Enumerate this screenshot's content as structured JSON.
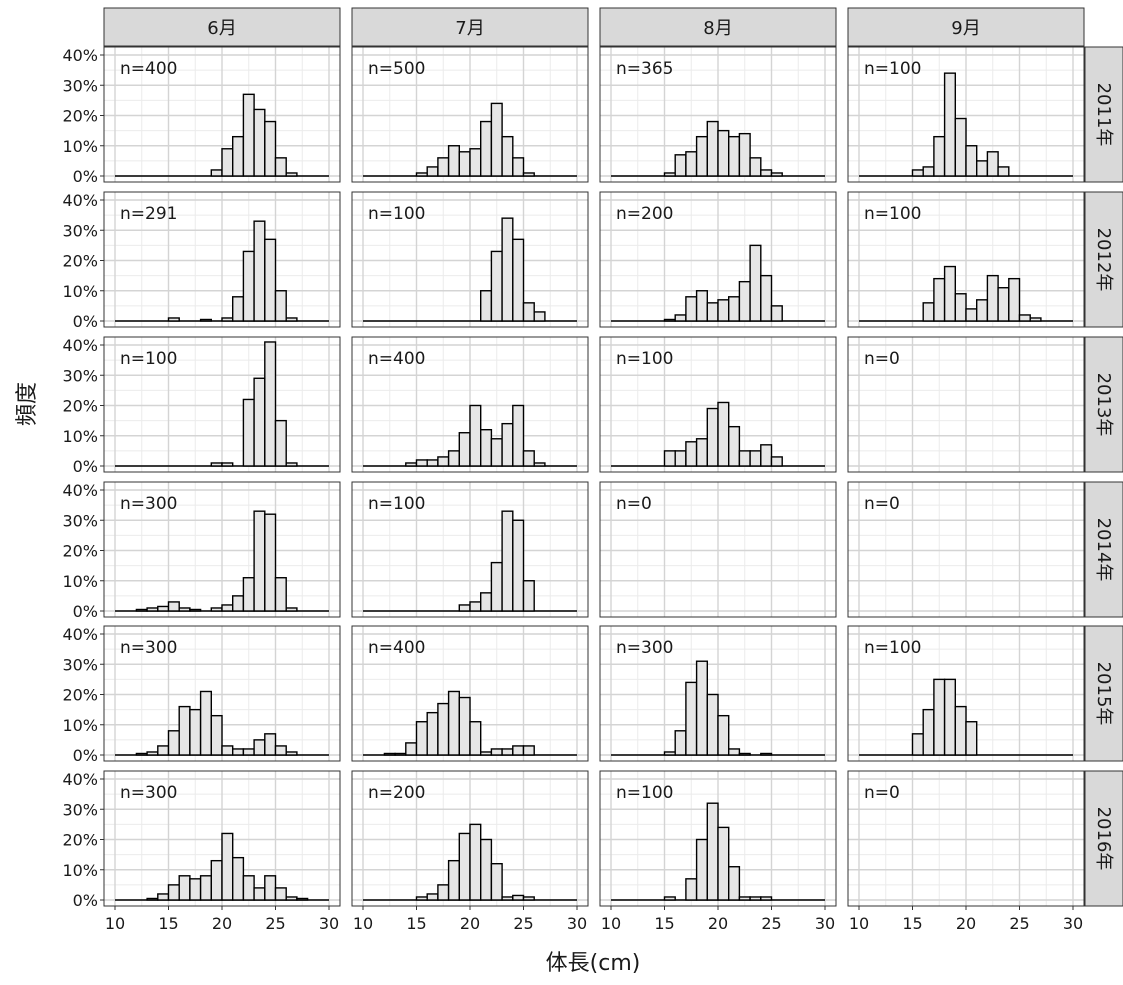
{
  "chart_data": {
    "type": "bar",
    "subtype": "faceted-histogram",
    "xlabel": "体長(cm)",
    "ylabel": "頻度",
    "xlim": [
      10,
      30
    ],
    "ylim": [
      0,
      40
    ],
    "x_ticks": [
      "10",
      "15",
      "20",
      "25",
      "30"
    ],
    "y_ticks": [
      "0%",
      "10%",
      "20%",
      "30%",
      "40%"
    ],
    "grid": true,
    "bin_width_cm": 1,
    "columns": [
      "6月",
      "7月",
      "8月",
      "9月"
    ],
    "rows": [
      "2011年",
      "2012年",
      "2013年",
      "2014年",
      "2015年",
      "2016年"
    ],
    "fill_color": "#e6e6e6",
    "edge_color": "#000000",
    "strip_color": "#d9d9d9",
    "panels": [
      {
        "row": "2011年",
        "col": "6月",
        "n_label": "n=400",
        "bins": [
          [
            19,
            2
          ],
          [
            20,
            9
          ],
          [
            21,
            13
          ],
          [
            22,
            27
          ],
          [
            23,
            22
          ],
          [
            24,
            18
          ],
          [
            25,
            6
          ],
          [
            26,
            1
          ]
        ]
      },
      {
        "row": "2011年",
        "col": "7月",
        "n_label": "n=500",
        "bins": [
          [
            15,
            1
          ],
          [
            16,
            3
          ],
          [
            17,
            6
          ],
          [
            18,
            10
          ],
          [
            19,
            8
          ],
          [
            20,
            9
          ],
          [
            21,
            18
          ],
          [
            22,
            24
          ],
          [
            23,
            13
          ],
          [
            24,
            6
          ],
          [
            25,
            1
          ]
        ]
      },
      {
        "row": "2011年",
        "col": "8月",
        "n_label": "n=365",
        "bins": [
          [
            15,
            1
          ],
          [
            16,
            7
          ],
          [
            17,
            8
          ],
          [
            18,
            13
          ],
          [
            19,
            18
          ],
          [
            20,
            15
          ],
          [
            21,
            13
          ],
          [
            22,
            14
          ],
          [
            23,
            6
          ],
          [
            24,
            2
          ],
          [
            25,
            1
          ]
        ]
      },
      {
        "row": "2011年",
        "col": "9月",
        "n_label": "n=100",
        "bins": [
          [
            15,
            2
          ],
          [
            16,
            3
          ],
          [
            17,
            13
          ],
          [
            18,
            34
          ],
          [
            19,
            19
          ],
          [
            20,
            10
          ],
          [
            21,
            5
          ],
          [
            22,
            8
          ],
          [
            23,
            3
          ]
        ]
      },
      {
        "row": "2012年",
        "col": "6月",
        "n_label": "n=291",
        "bins": [
          [
            15,
            1
          ],
          [
            18,
            0.5
          ],
          [
            20,
            1
          ],
          [
            21,
            8
          ],
          [
            22,
            23
          ],
          [
            23,
            33
          ],
          [
            24,
            27
          ],
          [
            25,
            10
          ],
          [
            26,
            1
          ]
        ]
      },
      {
        "row": "2012年",
        "col": "7月",
        "n_label": "n=100",
        "bins": [
          [
            21,
            10
          ],
          [
            22,
            23
          ],
          [
            23,
            34
          ],
          [
            24,
            27
          ],
          [
            25,
            6
          ],
          [
            26,
            3
          ]
        ]
      },
      {
        "row": "2012年",
        "col": "8月",
        "n_label": "n=200",
        "bins": [
          [
            15,
            0.5
          ],
          [
            16,
            2
          ],
          [
            17,
            8
          ],
          [
            18,
            10
          ],
          [
            19,
            6
          ],
          [
            20,
            7
          ],
          [
            21,
            8
          ],
          [
            22,
            13
          ],
          [
            23,
            25
          ],
          [
            24,
            15
          ],
          [
            25,
            5
          ]
        ]
      },
      {
        "row": "2012年",
        "col": "9月",
        "n_label": "n=100",
        "bins": [
          [
            16,
            6
          ],
          [
            17,
            14
          ],
          [
            18,
            18
          ],
          [
            19,
            9
          ],
          [
            20,
            4
          ],
          [
            21,
            7
          ],
          [
            22,
            15
          ],
          [
            23,
            11
          ],
          [
            24,
            14
          ],
          [
            25,
            2
          ],
          [
            26,
            1
          ]
        ]
      },
      {
        "row": "2013年",
        "col": "6月",
        "n_label": "n=100",
        "bins": [
          [
            19,
            1
          ],
          [
            20,
            1
          ],
          [
            22,
            22
          ],
          [
            23,
            29
          ],
          [
            24,
            41
          ],
          [
            25,
            15
          ],
          [
            26,
            1
          ]
        ]
      },
      {
        "row": "2013年",
        "col": "7月",
        "n_label": "n=400",
        "bins": [
          [
            14,
            1
          ],
          [
            15,
            2
          ],
          [
            16,
            2
          ],
          [
            17,
            3
          ],
          [
            18,
            5
          ],
          [
            19,
            11
          ],
          [
            20,
            20
          ],
          [
            21,
            12
          ],
          [
            22,
            9
          ],
          [
            23,
            14
          ],
          [
            24,
            20
          ],
          [
            25,
            5
          ],
          [
            26,
            1
          ]
        ]
      },
      {
        "row": "2013年",
        "col": "8月",
        "n_label": "n=100",
        "bins": [
          [
            15,
            5
          ],
          [
            16,
            5
          ],
          [
            17,
            8
          ],
          [
            18,
            9
          ],
          [
            19,
            19
          ],
          [
            20,
            21
          ],
          [
            21,
            13
          ],
          [
            22,
            5
          ],
          [
            23,
            5
          ],
          [
            24,
            7
          ],
          [
            25,
            3
          ]
        ]
      },
      {
        "row": "2013年",
        "col": "9月",
        "n_label": "n=0",
        "bins": []
      },
      {
        "row": "2014年",
        "col": "6月",
        "n_label": "n=300",
        "bins": [
          [
            12,
            0.5
          ],
          [
            13,
            1
          ],
          [
            14,
            1.5
          ],
          [
            15,
            3
          ],
          [
            16,
            1
          ],
          [
            17,
            0.5
          ],
          [
            19,
            1
          ],
          [
            20,
            2
          ],
          [
            21,
            5
          ],
          [
            22,
            11
          ],
          [
            23,
            33
          ],
          [
            24,
            32
          ],
          [
            25,
            11
          ],
          [
            26,
            1
          ]
        ]
      },
      {
        "row": "2014年",
        "col": "7月",
        "n_label": "n=100",
        "bins": [
          [
            19,
            2
          ],
          [
            20,
            3
          ],
          [
            21,
            6
          ],
          [
            22,
            16
          ],
          [
            23,
            33
          ],
          [
            24,
            30
          ],
          [
            25,
            10
          ]
        ]
      },
      {
        "row": "2014年",
        "col": "8月",
        "n_label": "n=0",
        "bins": []
      },
      {
        "row": "2014年",
        "col": "9月",
        "n_label": "n=0",
        "bins": []
      },
      {
        "row": "2015年",
        "col": "6月",
        "n_label": "n=300",
        "bins": [
          [
            12,
            0.5
          ],
          [
            13,
            1
          ],
          [
            14,
            3
          ],
          [
            15,
            8
          ],
          [
            16,
            16
          ],
          [
            17,
            15
          ],
          [
            18,
            21
          ],
          [
            19,
            13
          ],
          [
            20,
            3
          ],
          [
            21,
            2
          ],
          [
            22,
            2
          ],
          [
            23,
            5
          ],
          [
            24,
            7
          ],
          [
            25,
            3
          ],
          [
            26,
            1
          ]
        ]
      },
      {
        "row": "2015年",
        "col": "7月",
        "n_label": "n=400",
        "bins": [
          [
            12,
            0.5
          ],
          [
            13,
            0.5
          ],
          [
            14,
            4
          ],
          [
            15,
            11
          ],
          [
            16,
            14
          ],
          [
            17,
            17
          ],
          [
            18,
            21
          ],
          [
            19,
            19
          ],
          [
            20,
            11
          ],
          [
            21,
            1
          ],
          [
            22,
            2
          ],
          [
            23,
            2
          ],
          [
            24,
            3
          ],
          [
            25,
            3
          ]
        ]
      },
      {
        "row": "2015年",
        "col": "8月",
        "n_label": "n=300",
        "bins": [
          [
            15,
            1
          ],
          [
            16,
            8
          ],
          [
            17,
            24
          ],
          [
            18,
            31
          ],
          [
            19,
            20
          ],
          [
            20,
            13
          ],
          [
            21,
            2
          ],
          [
            22,
            0.5
          ],
          [
            24,
            0.5
          ]
        ]
      },
      {
        "row": "2015年",
        "col": "9月",
        "n_label": "n=100",
        "bins": [
          [
            15,
            7
          ],
          [
            16,
            15
          ],
          [
            17,
            25
          ],
          [
            18,
            25
          ],
          [
            19,
            16
          ],
          [
            20,
            11
          ]
        ]
      },
      {
        "row": "2016年",
        "col": "6月",
        "n_label": "n=300",
        "bins": [
          [
            13,
            0.5
          ],
          [
            14,
            2
          ],
          [
            15,
            5
          ],
          [
            16,
            8
          ],
          [
            17,
            7
          ],
          [
            18,
            8
          ],
          [
            19,
            13
          ],
          [
            20,
            22
          ],
          [
            21,
            14
          ],
          [
            22,
            8
          ],
          [
            23,
            4
          ],
          [
            24,
            8
          ],
          [
            25,
            4
          ],
          [
            26,
            1
          ],
          [
            27,
            0.5
          ]
        ]
      },
      {
        "row": "2016年",
        "col": "7月",
        "n_label": "n=200",
        "bins": [
          [
            15,
            1
          ],
          [
            16,
            2
          ],
          [
            17,
            5
          ],
          [
            18,
            13
          ],
          [
            19,
            22
          ],
          [
            20,
            25
          ],
          [
            21,
            20
          ],
          [
            22,
            12
          ],
          [
            23,
            1
          ],
          [
            24,
            1.5
          ],
          [
            25,
            1
          ]
        ]
      },
      {
        "row": "2016年",
        "col": "8月",
        "n_label": "n=100",
        "bins": [
          [
            15,
            1
          ],
          [
            17,
            7
          ],
          [
            18,
            20
          ],
          [
            19,
            32
          ],
          [
            20,
            24
          ],
          [
            21,
            11
          ],
          [
            22,
            1
          ],
          [
            23,
            1
          ],
          [
            24,
            1
          ]
        ]
      },
      {
        "row": "2016年",
        "col": "9月",
        "n_label": "n=0",
        "bins": []
      }
    ]
  }
}
